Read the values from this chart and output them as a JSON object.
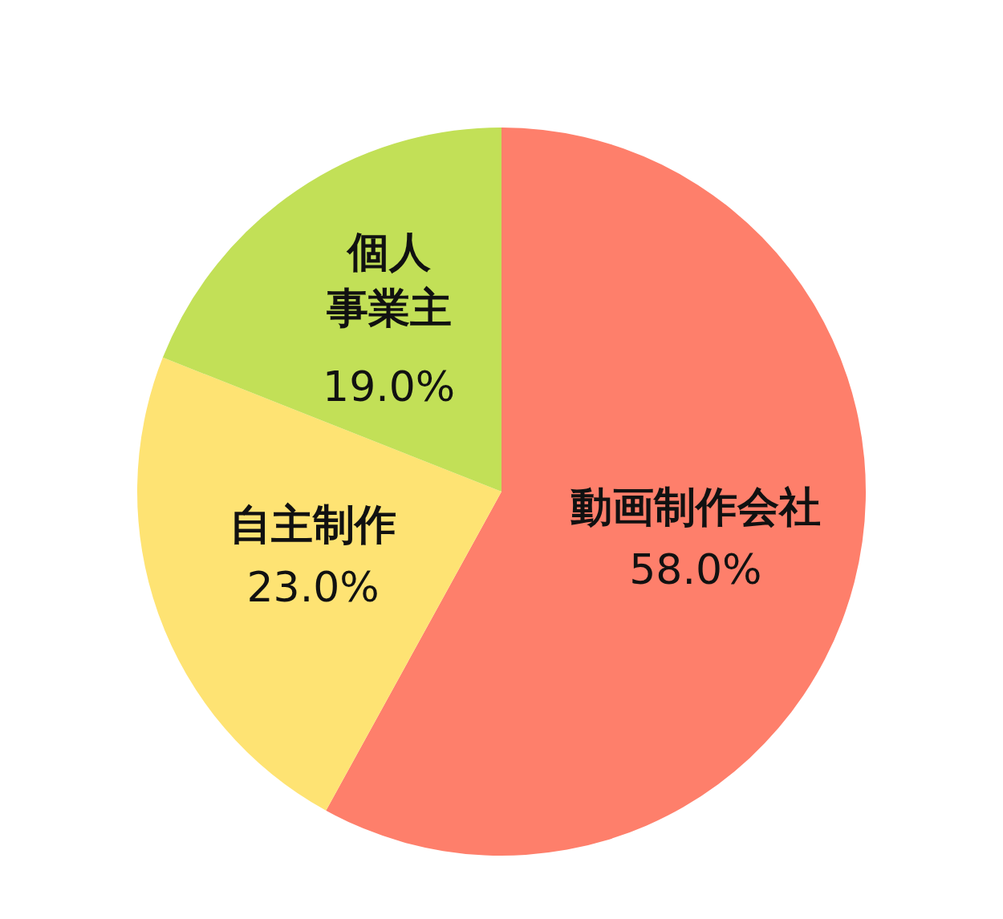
{
  "chart_data": {
    "type": "pie",
    "categories": [
      "動画制作会社",
      "自主制作",
      "個人事業主"
    ],
    "values": [
      58.0,
      23.0,
      19.0
    ],
    "value_labels": [
      "58.0%",
      "23.0%",
      "19.0%"
    ],
    "colors": [
      "#fe7f6b",
      "#fee373",
      "#c2e057"
    ],
    "legend": false
  }
}
